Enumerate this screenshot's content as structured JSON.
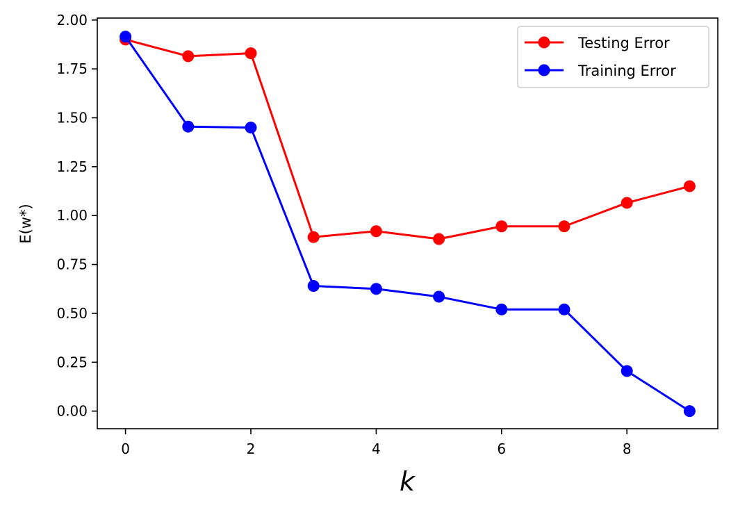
{
  "chart_data": {
    "type": "line",
    "title": "",
    "xlabel": "k",
    "ylabel": "E(w*)",
    "xlim": [
      -0.45,
      9.45
    ],
    "ylim": [
      -0.09,
      2.01
    ],
    "xticks": [
      0,
      2,
      4,
      6,
      8
    ],
    "yticks": [
      0.0,
      0.25,
      0.5,
      0.75,
      1.0,
      1.25,
      1.5,
      1.75,
      2.0
    ],
    "ytick_labels": [
      "0.00",
      "0.25",
      "0.50",
      "0.75",
      "1.00",
      "1.25",
      "1.50",
      "1.75",
      "2.00"
    ],
    "x": [
      0,
      1,
      2,
      3,
      4,
      5,
      6,
      7,
      8,
      9
    ],
    "series": [
      {
        "name": "Testing Error",
        "color": "#ff0000",
        "marker": "circle",
        "values": [
          1.9,
          1.815,
          1.83,
          0.89,
          0.92,
          0.88,
          0.945,
          0.945,
          1.065,
          1.15
        ]
      },
      {
        "name": "Training Error",
        "color": "#0000ff",
        "marker": "circle",
        "values": [
          1.915,
          1.455,
          1.45,
          0.64,
          0.625,
          0.585,
          0.52,
          0.52,
          0.205,
          0.0
        ]
      }
    ],
    "legend": {
      "position": "top-right"
    },
    "grid": false
  }
}
